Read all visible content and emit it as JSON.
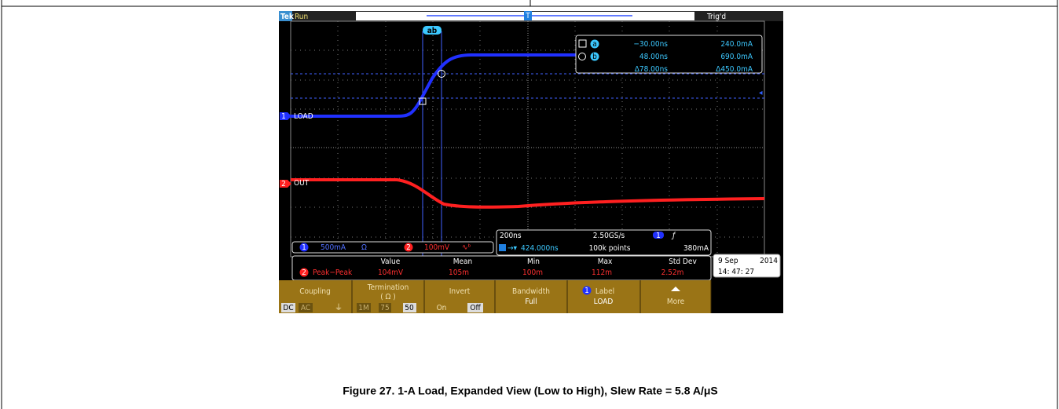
{
  "screen": {
    "brand": "Tek",
    "state": "Run",
    "trigger_status": "Trig'd",
    "trigger_marker": "T",
    "cursor_tag": "ab",
    "cursors": {
      "a": {
        "id": "a",
        "time": "−30.00ns",
        "current": "240.0mA"
      },
      "b": {
        "id": "b",
        "time": "48.00ns",
        "current": "690.0mA"
      },
      "delta": {
        "time": "Δ78.00ns",
        "current": "Δ450.0mA"
      }
    },
    "channels": [
      {
        "number": "1",
        "label": "LOAD",
        "scale": "500mA",
        "unit": "Ω"
      },
      {
        "number": "2",
        "label": "OUT",
        "scale": "100mV"
      }
    ],
    "horizontal": {
      "scale": "200ns",
      "sample_rate": "2.50GS/s",
      "position": "424.000ns",
      "record_length": "100k points",
      "trigger_channel": "1",
      "trigger_level": "380mA"
    },
    "measurement": {
      "headers": [
        "Value",
        "Mean",
        "Min",
        "Max",
        "Std Dev"
      ],
      "channel": "2",
      "name": "Peak−Peak",
      "values": [
        "104mV",
        "105m",
        "100m",
        "112m",
        "2.52m"
      ]
    },
    "date": "9 Sep",
    "year": "2014",
    "time": "14: 47: 27"
  },
  "menu": [
    {
      "title": "Coupling",
      "options": [
        "DC",
        "AC"
      ]
    },
    {
      "title": "Termination",
      "subtitle": "( Ω )",
      "options": [
        "1M",
        "75",
        "50"
      ]
    },
    {
      "title": "Invert",
      "options": [
        "On",
        "Off"
      ]
    },
    {
      "title": "Bandwidth",
      "options": [
        "Full"
      ]
    },
    {
      "title": "Label",
      "channel": "1",
      "options": [
        "LOAD"
      ]
    },
    {
      "title": "More"
    }
  ],
  "caption": "Figure 27. 1-A Load, Expanded View (Low to High), Slew Rate = 5.8 A/μS"
}
